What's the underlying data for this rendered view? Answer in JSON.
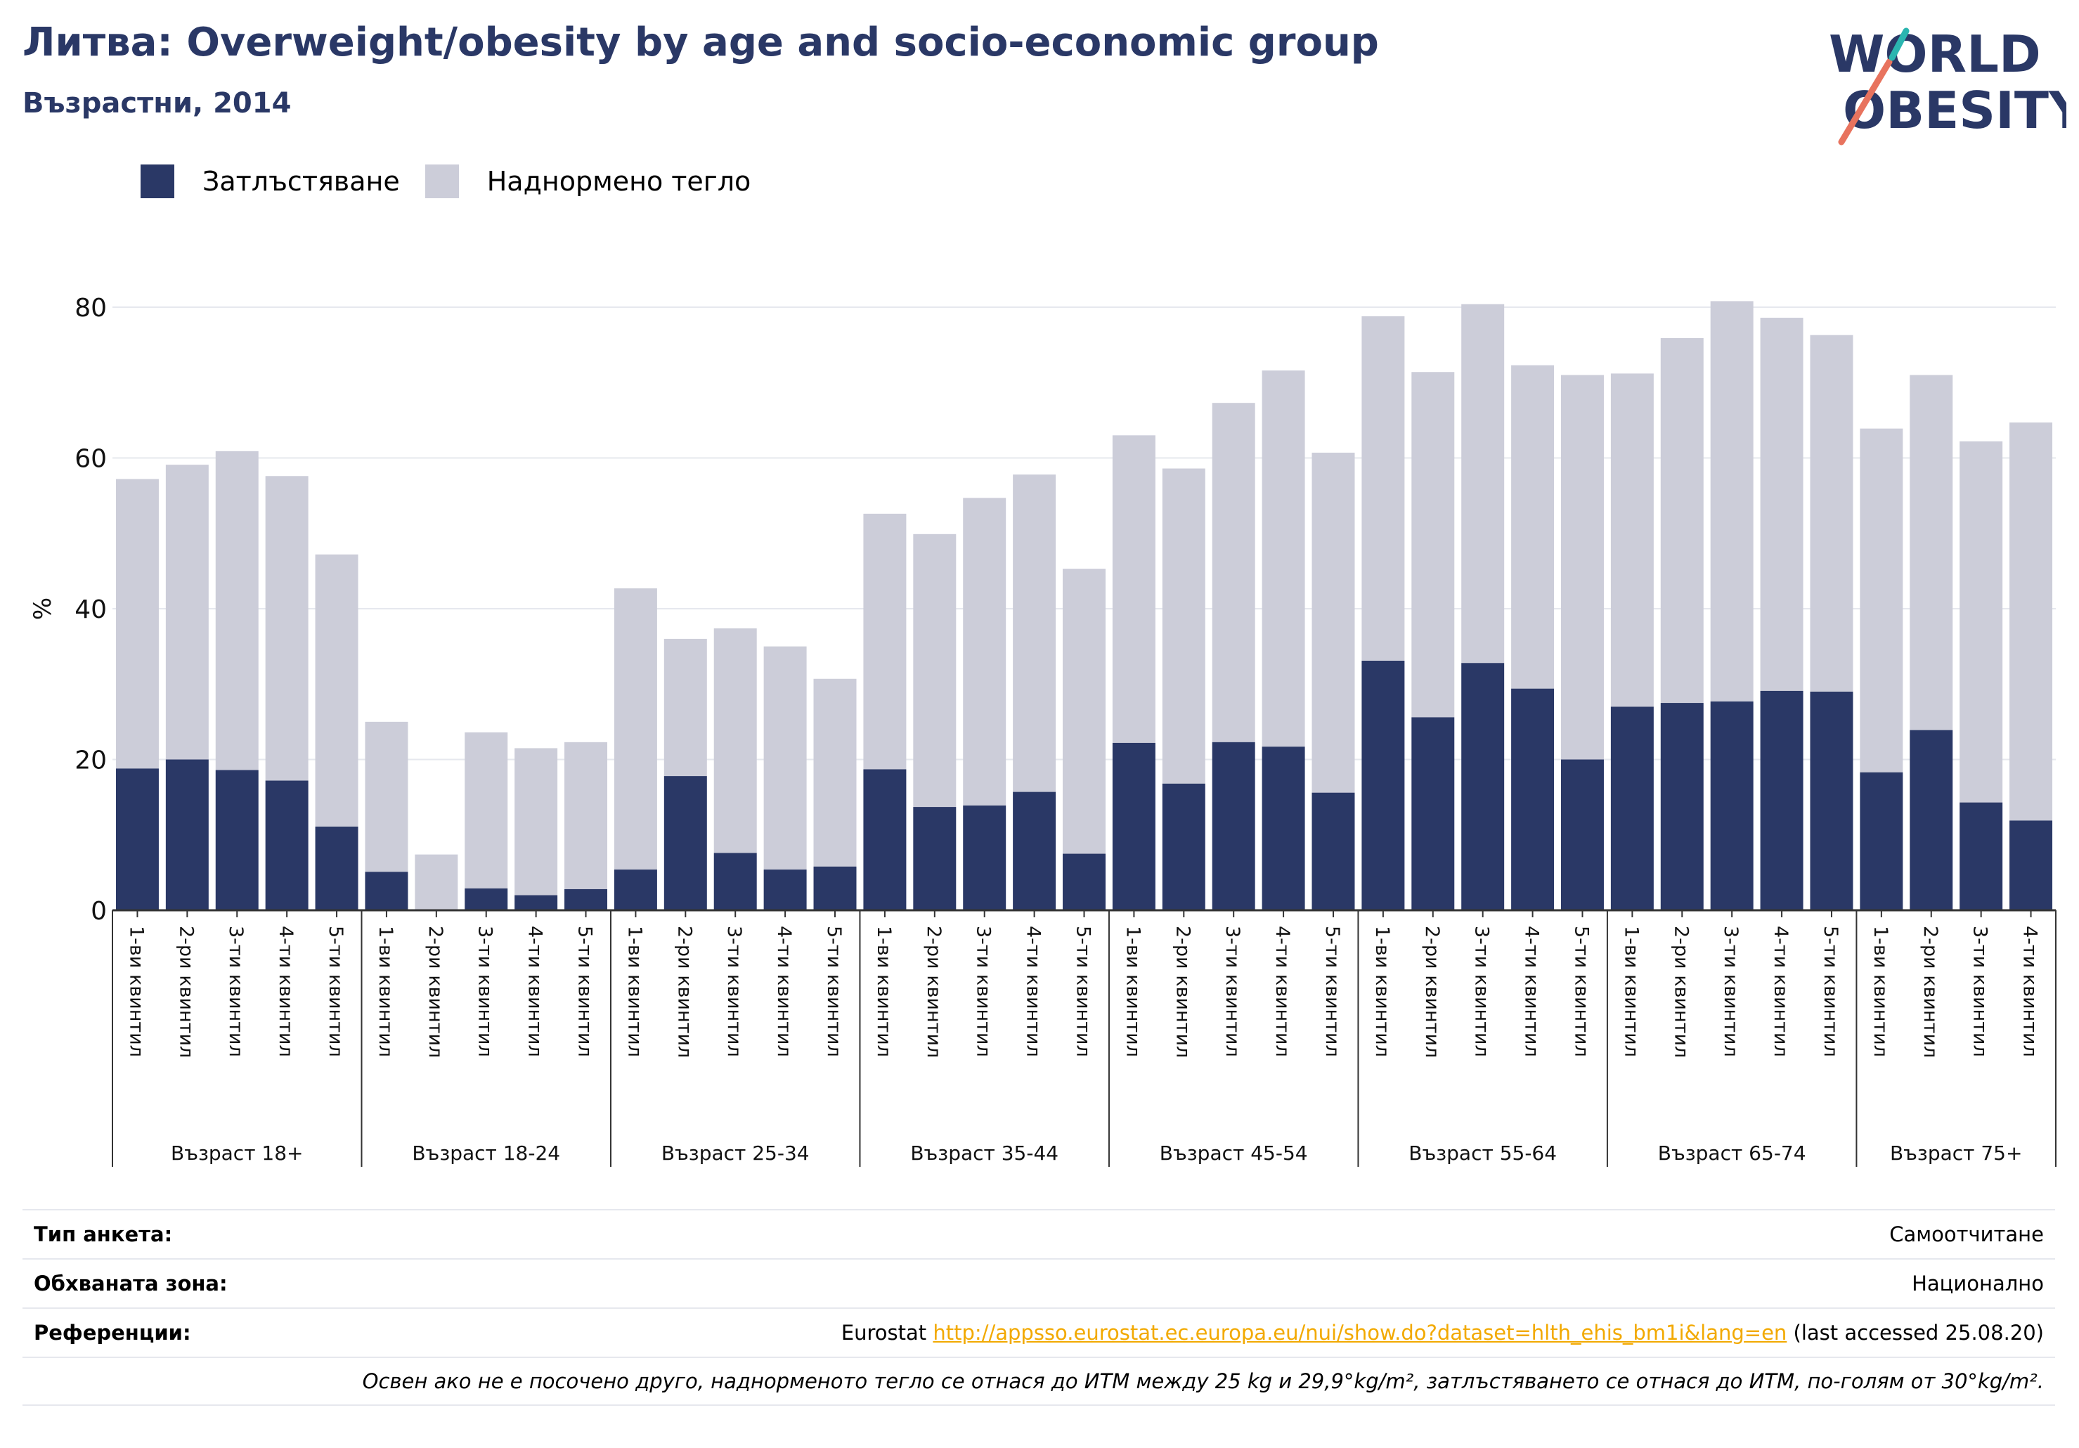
{
  "title": "Литва: Overweight/obesity by age and socio-economic group",
  "subtitle": "Възрастни, 2014",
  "logo": {
    "line1": "WORLD",
    "line2": "OBESITY"
  },
  "colors": {
    "obesity": "#2a3866",
    "overweight": "#cccdd9",
    "title": "#2a3866",
    "link": "#f2a900",
    "grid": "#e6e8ee"
  },
  "legend": {
    "obesity": "Затлъстяване",
    "overweight": "Наднормено тегло"
  },
  "chart_data": {
    "type": "bar",
    "stacked": true,
    "ylabel": "%",
    "ylim": [
      0,
      80
    ],
    "yticks": [
      0,
      20,
      40,
      60,
      80
    ],
    "grid": true,
    "legend_position": "top-left",
    "groups": [
      {
        "label": "Възраст 18+",
        "categories": [
          "1-ви квинтил",
          "2-ри квинтил",
          "3-ти квинтил",
          "4-ти квинтил",
          "5-ти квинтил"
        ]
      },
      {
        "label": "Възраст 18-24",
        "categories": [
          "1-ви квинтил",
          "2-ри квинтил",
          "3-ти квинтил",
          "4-ти квинтил",
          "5-ти квинтил"
        ]
      },
      {
        "label": "Възраст 25-34",
        "categories": [
          "1-ви квинтил",
          "2-ри квинтил",
          "3-ти квинтил",
          "4-ти квинтил",
          "5-ти квинтил"
        ]
      },
      {
        "label": "Възраст 35-44",
        "categories": [
          "1-ви квинтил",
          "2-ри квинтил",
          "3-ти квинтил",
          "4-ти квинтил",
          "5-ти квинтил"
        ]
      },
      {
        "label": "Възраст 45-54",
        "categories": [
          "1-ви квинтил",
          "2-ри квинтил",
          "3-ти квинтил",
          "4-ти квинтил",
          "5-ти квинтил"
        ]
      },
      {
        "label": "Възраст 55-64",
        "categories": [
          "1-ви квинтил",
          "2-ри квинтил",
          "3-ти квинтил",
          "4-ти квинтил",
          "5-ти квинтил"
        ]
      },
      {
        "label": "Възраст 65-74",
        "categories": [
          "1-ви квинтил",
          "2-ри квинтил",
          "3-ти квинтил",
          "4-ти квинтил",
          "5-ти квинтил"
        ]
      },
      {
        "label": "Възраст 75+",
        "categories": [
          "1-ви квинтил",
          "2-ри квинтил",
          "3-ти квинтил",
          "4-ти квинтил"
        ]
      }
    ],
    "series": [
      {
        "name": "Затлъстяване",
        "values": [
          18.8,
          20.0,
          18.6,
          17.2,
          11.1,
          5.1,
          0.0,
          2.9,
          2.0,
          2.8,
          5.4,
          17.8,
          7.6,
          5.4,
          5.8,
          18.7,
          13.7,
          13.9,
          15.7,
          7.5,
          22.2,
          16.8,
          22.3,
          21.7,
          15.6,
          33.1,
          25.6,
          32.8,
          29.4,
          20.0,
          27.0,
          27.5,
          27.7,
          29.1,
          29.0,
          18.3,
          23.9,
          14.3,
          11.9
        ]
      },
      {
        "name": "Наднормено тегло",
        "values": [
          38.4,
          39.1,
          42.3,
          40.4,
          36.1,
          19.9,
          7.4,
          20.7,
          19.5,
          19.5,
          37.3,
          18.2,
          29.8,
          29.6,
          24.9,
          33.9,
          36.2,
          40.8,
          42.1,
          37.8,
          40.8,
          41.8,
          45.0,
          49.9,
          45.1,
          45.7,
          45.8,
          47.6,
          42.9,
          51.0,
          44.2,
          48.4,
          53.1,
          49.5,
          47.3,
          45.6,
          47.1,
          47.9,
          52.8
        ]
      }
    ]
  },
  "footer": {
    "survey_label": "Тип анкета:",
    "survey_value": "Самоотчитане",
    "area_label": "Обхваната зона:",
    "area_value": "Национално",
    "ref_label": "Референции:",
    "ref_prefix": "Eurostat ",
    "ref_link": "http://appsso.eurostat.ec.europa.eu/nui/show.do?dataset=hlth_ehis_bm1i&lang=en",
    "ref_suffix": " (last accessed 25.08.20)",
    "note": "Освен ако не е посочено друго, наднорменото тегло се отнася до ИТМ между 25 kg и 29,9°kg/m², затлъстяването се отнася до ИТМ, по-голям от 30°kg/m²."
  }
}
